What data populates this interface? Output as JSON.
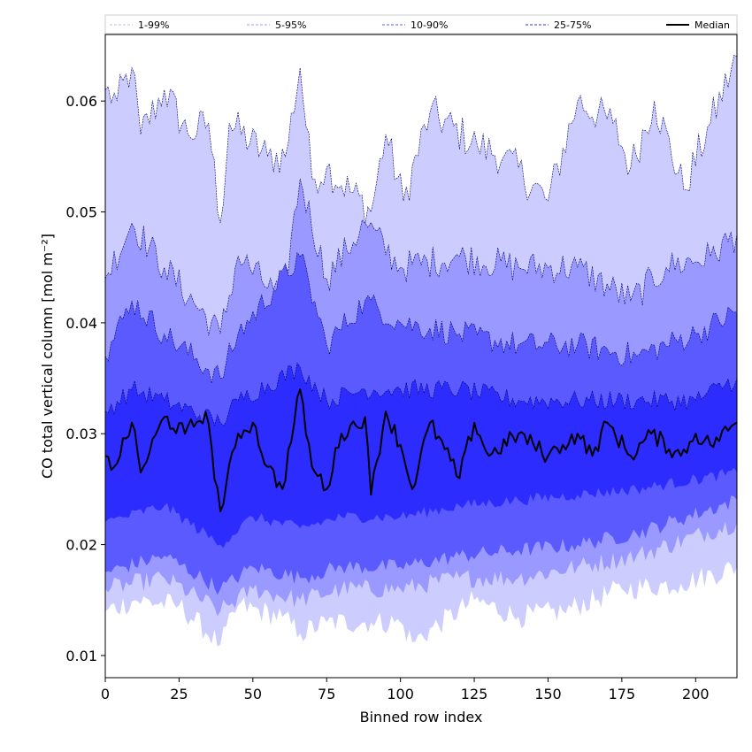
{
  "chart_data": {
    "type": "area",
    "xlabel": "Binned row index",
    "ylabel": "CO total vertical column [mol m⁻²]",
    "xlim": [
      0,
      214
    ],
    "ylim": [
      0.008,
      0.066
    ],
    "x_ticks": [
      0,
      25,
      50,
      75,
      100,
      125,
      150,
      175,
      200
    ],
    "y_ticks": [
      0.01,
      0.02,
      0.03,
      0.04,
      0.05,
      0.06
    ],
    "y_tick_labels": [
      "0.01",
      "0.02",
      "0.03",
      "0.04",
      "0.05",
      "0.06"
    ],
    "grid": false,
    "legend_position": "top",
    "x_step": 1,
    "bands": [
      {
        "name": "1-99%",
        "color": "#ccccff",
        "upper_anchors": [
          [
            0,
            0.061
          ],
          [
            4,
            0.06
          ],
          [
            9,
            0.063
          ],
          [
            12,
            0.057
          ],
          [
            20,
            0.061
          ],
          [
            28,
            0.057
          ],
          [
            35,
            0.058
          ],
          [
            39,
            0.049
          ],
          [
            42,
            0.058
          ],
          [
            55,
            0.055
          ],
          [
            61,
            0.055
          ],
          [
            66,
            0.063
          ],
          [
            70,
            0.053
          ],
          [
            75,
            0.054
          ],
          [
            90,
            0.05
          ],
          [
            95,
            0.057
          ],
          [
            101,
            0.051
          ],
          [
            110,
            0.059
          ],
          [
            126,
            0.056
          ],
          [
            135,
            0.055
          ],
          [
            150,
            0.051
          ],
          [
            160,
            0.06
          ],
          [
            172,
            0.058
          ],
          [
            178,
            0.054
          ],
          [
            186,
            0.06
          ],
          [
            196,
            0.052
          ],
          [
            205,
            0.058
          ],
          [
            214,
            0.064
          ]
        ],
        "lower_anchors": [
          [
            0,
            0.014
          ],
          [
            10,
            0.015
          ],
          [
            25,
            0.0145
          ],
          [
            39,
            0.011
          ],
          [
            45,
            0.0145
          ],
          [
            60,
            0.0135
          ],
          [
            66,
            0.012
          ],
          [
            75,
            0.013
          ],
          [
            90,
            0.013
          ],
          [
            100,
            0.013
          ],
          [
            104,
            0.0112
          ],
          [
            125,
            0.015
          ],
          [
            140,
            0.0135
          ],
          [
            155,
            0.014
          ],
          [
            175,
            0.016
          ],
          [
            195,
            0.0165
          ],
          [
            214,
            0.018
          ]
        ]
      },
      {
        "name": "5-95%",
        "color": "#9999ff",
        "upper_anchors": [
          [
            0,
            0.044
          ],
          [
            9,
            0.049
          ],
          [
            20,
            0.045
          ],
          [
            39,
            0.039
          ],
          [
            45,
            0.046
          ],
          [
            60,
            0.042
          ],
          [
            66,
            0.053
          ],
          [
            75,
            0.044
          ],
          [
            88,
            0.049
          ],
          [
            100,
            0.045
          ],
          [
            120,
            0.046
          ],
          [
            140,
            0.045
          ],
          [
            160,
            0.045
          ],
          [
            178,
            0.042
          ],
          [
            190,
            0.045
          ],
          [
            205,
            0.046
          ],
          [
            214,
            0.048
          ]
        ],
        "lower_anchors": [
          [
            0,
            0.016
          ],
          [
            20,
            0.017
          ],
          [
            39,
            0.014
          ],
          [
            50,
            0.016
          ],
          [
            66,
            0.015
          ],
          [
            80,
            0.016
          ],
          [
            100,
            0.016
          ],
          [
            120,
            0.017
          ],
          [
            140,
            0.017
          ],
          [
            160,
            0.018
          ],
          [
            180,
            0.019
          ],
          [
            214,
            0.022
          ]
        ]
      },
      {
        "name": "10-90%",
        "color": "#5a5aff",
        "upper_anchors": [
          [
            0,
            0.037
          ],
          [
            9,
            0.042
          ],
          [
            20,
            0.039
          ],
          [
            39,
            0.035
          ],
          [
            45,
            0.039
          ],
          [
            66,
            0.046
          ],
          [
            75,
            0.038
          ],
          [
            88,
            0.042
          ],
          [
            100,
            0.04
          ],
          [
            120,
            0.039
          ],
          [
            140,
            0.038
          ],
          [
            160,
            0.038
          ],
          [
            180,
            0.037
          ],
          [
            200,
            0.039
          ],
          [
            214,
            0.041
          ]
        ],
        "lower_anchors": [
          [
            0,
            0.0175
          ],
          [
            20,
            0.019
          ],
          [
            39,
            0.016
          ],
          [
            50,
            0.018
          ],
          [
            66,
            0.017
          ],
          [
            80,
            0.018
          ],
          [
            100,
            0.018
          ],
          [
            120,
            0.019
          ],
          [
            140,
            0.0195
          ],
          [
            160,
            0.02
          ],
          [
            180,
            0.021
          ],
          [
            214,
            0.024
          ]
        ]
      },
      {
        "name": "25-75%",
        "color": "#2c2cff",
        "upper_anchors": [
          [
            0,
            0.032
          ],
          [
            9,
            0.034
          ],
          [
            20,
            0.033
          ],
          [
            39,
            0.031
          ],
          [
            45,
            0.033
          ],
          [
            66,
            0.036
          ],
          [
            75,
            0.033
          ],
          [
            88,
            0.034
          ],
          [
            100,
            0.034
          ],
          [
            120,
            0.034
          ],
          [
            140,
            0.033
          ],
          [
            160,
            0.033
          ],
          [
            180,
            0.033
          ],
          [
            200,
            0.033
          ],
          [
            214,
            0.035
          ]
        ],
        "lower_anchors": [
          [
            0,
            0.022
          ],
          [
            20,
            0.0235
          ],
          [
            39,
            0.02
          ],
          [
            50,
            0.0225
          ],
          [
            66,
            0.0215
          ],
          [
            80,
            0.0225
          ],
          [
            100,
            0.0225
          ],
          [
            120,
            0.0235
          ],
          [
            140,
            0.024
          ],
          [
            160,
            0.0245
          ],
          [
            180,
            0.025
          ],
          [
            214,
            0.0265
          ]
        ]
      }
    ],
    "median": {
      "name": "Median",
      "color": "#000000",
      "anchors": [
        [
          0,
          0.028
        ],
        [
          3,
          0.027
        ],
        [
          9,
          0.031
        ],
        [
          12,
          0.0265
        ],
        [
          20,
          0.0315
        ],
        [
          27,
          0.03
        ],
        [
          34,
          0.032
        ],
        [
          39,
          0.023
        ],
        [
          45,
          0.03
        ],
        [
          50,
          0.031
        ],
        [
          55,
          0.027
        ],
        [
          60,
          0.025
        ],
        [
          66,
          0.034
        ],
        [
          70,
          0.027
        ],
        [
          75,
          0.025
        ],
        [
          80,
          0.03
        ],
        [
          88,
          0.0315
        ],
        [
          90,
          0.0245
        ],
        [
          95,
          0.032
        ],
        [
          100,
          0.029
        ],
        [
          104,
          0.025
        ],
        [
          110,
          0.031
        ],
        [
          120,
          0.026
        ],
        [
          125,
          0.031
        ],
        [
          130,
          0.028
        ],
        [
          140,
          0.03
        ],
        [
          150,
          0.028
        ],
        [
          155,
          0.029
        ],
        [
          160,
          0.03
        ],
        [
          165,
          0.028
        ],
        [
          170,
          0.031
        ],
        [
          178,
          0.028
        ],
        [
          185,
          0.03
        ],
        [
          195,
          0.028
        ],
        [
          200,
          0.03
        ],
        [
          205,
          0.029
        ],
        [
          214,
          0.031
        ]
      ]
    },
    "legend": [
      {
        "label": "1-99%",
        "color": "#ccccff",
        "style": "dashed"
      },
      {
        "label": "5-95%",
        "color": "#9999ff",
        "style": "dashed"
      },
      {
        "label": "10-90%",
        "color": "#5a5aff",
        "style": "dashed"
      },
      {
        "label": "25-75%",
        "color": "#2c2cff",
        "style": "dashed"
      },
      {
        "label": "Median",
        "color": "#000000",
        "style": "solid"
      }
    ]
  }
}
